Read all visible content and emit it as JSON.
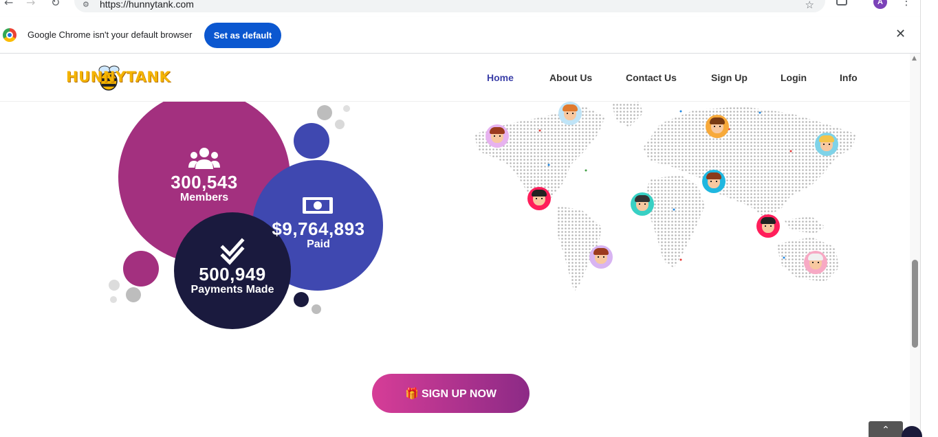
{
  "browser": {
    "url": "https://hunnytank.com",
    "profile_initial": "A",
    "infobar": {
      "message": "Google Chrome isn't your default browser",
      "button": "Set as default"
    }
  },
  "header": {
    "logo_text": "HUNNYTANK",
    "nav": [
      "Home",
      "About Us",
      "Contact Us",
      "Sign Up",
      "Login",
      "Info"
    ],
    "active_nav": "Home"
  },
  "stats": {
    "members": {
      "value": "300,543",
      "label": "Members",
      "icon": "users-icon",
      "color": "#a3307f"
    },
    "paid": {
      "value": "$9,764,893",
      "label": "Paid",
      "icon": "money-icon",
      "color": "#3f48b0"
    },
    "payments": {
      "value": "500,949",
      "label": "Payments Made",
      "icon": "double-check-icon",
      "color": "#1a1a3e"
    }
  },
  "cta": {
    "label": "SIGN UP NOW",
    "icon": "gift-icon"
  },
  "colors": {
    "accent_nav": "#3b3fa8",
    "cta_start": "#d63d97",
    "cta_end": "#8c2a86",
    "logo": "#f4b400"
  }
}
